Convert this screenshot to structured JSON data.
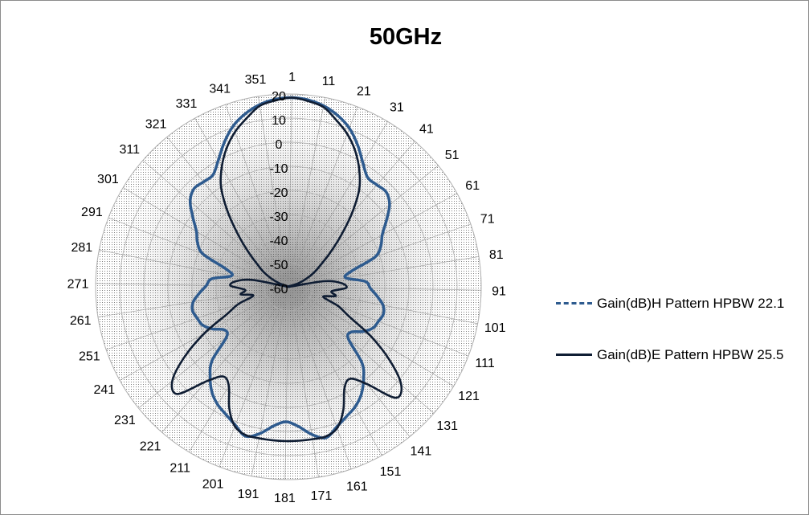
{
  "chart_data": {
    "type": "polar-line",
    "title": "50GHz",
    "angle_ticks": [
      "1",
      "11",
      "21",
      "31",
      "41",
      "51",
      "61",
      "71",
      "81",
      "91",
      "101",
      "111",
      "121",
      "131",
      "141",
      "151",
      "161",
      "171",
      "181",
      "191",
      "201",
      "211",
      "221",
      "231",
      "241",
      "251",
      "261",
      "271",
      "281",
      "291",
      "301",
      "311",
      "321",
      "331",
      "341",
      "351"
    ],
    "radial_ticks": [
      "-60",
      "-50",
      "-40",
      "-30",
      "-20",
      "-10",
      "0",
      "10",
      "20"
    ],
    "radial_range": [
      -60,
      20
    ],
    "grid": true,
    "legend_position": "right",
    "series": [
      {
        "name": "Gain(dB)H Pattern HPBW 22.1",
        "color": "#2e5b8f",
        "line_style": "dashed",
        "angles": [
          1,
          6,
          11,
          16,
          21,
          26,
          31,
          36,
          41,
          46,
          51,
          56,
          61,
          66,
          71,
          76,
          81,
          86,
          91,
          96,
          101,
          106,
          111,
          116,
          121,
          126,
          131,
          136,
          141,
          146,
          151,
          156,
          161,
          166,
          171,
          176,
          181,
          186,
          191,
          196,
          201,
          206,
          211,
          216,
          221,
          226,
          231,
          236,
          241,
          246,
          251,
          256,
          261,
          266,
          271,
          276,
          281,
          286,
          291,
          296,
          301,
          306,
          311,
          316,
          321,
          326,
          331,
          336,
          341,
          346,
          351,
          356
        ],
        "values": [
          18.5,
          18,
          16.5,
          14,
          10.5,
          5.5,
          0,
          -4,
          -4,
          -3.5,
          -6,
          -11,
          -15.5,
          -18,
          -22,
          -33,
          -36,
          -28,
          -26,
          -23,
          -20,
          -19,
          -20,
          -21,
          -24,
          -28,
          -27,
          -16,
          -10.5,
          -6,
          -3,
          -1,
          1.5,
          4.5,
          2,
          -2,
          -4,
          -2,
          2,
          4.5,
          1.5,
          -1,
          -3,
          -6,
          -10.5,
          -16,
          -27,
          -28,
          -24,
          -21,
          -20,
          -19,
          -20,
          -23,
          -26,
          -28,
          -36,
          -33,
          -22,
          -18,
          -15.5,
          -11,
          -6,
          -3.5,
          -4,
          -4,
          0,
          5.5,
          10.5,
          14,
          16.5,
          18
        ]
      },
      {
        "name": "Gain(dB)E Pattern HPBW 25.5",
        "color": "#0f1d33",
        "line_style": "solid",
        "angles": [
          1,
          6,
          11,
          16,
          21,
          26,
          31,
          36,
          41,
          46,
          51,
          56,
          61,
          66,
          71,
          76,
          81,
          86,
          91,
          96,
          101,
          106,
          111,
          116,
          121,
          126,
          131,
          136,
          141,
          146,
          151,
          156,
          161,
          166,
          171,
          176,
          181,
          186,
          191,
          196,
          201,
          206,
          211,
          216,
          221,
          226,
          231,
          236,
          241,
          246,
          251,
          256,
          261,
          266,
          271,
          276,
          281,
          286,
          291,
          296,
          301,
          306,
          311,
          316,
          321,
          326,
          331,
          336,
          341,
          346,
          351,
          356
        ],
        "values": [
          18.5,
          17.5,
          16,
          12,
          8,
          3,
          -3,
          -10,
          -20,
          -30,
          -38,
          -44,
          -48,
          -52,
          -56,
          -60,
          -45,
          -38,
          -36,
          -42,
          -40,
          -45,
          -38,
          -32,
          -20,
          -8,
          2,
          4,
          -8,
          -14,
          -12,
          -4,
          2,
          4,
          4,
          4,
          4,
          4,
          4,
          4,
          2,
          -4,
          -12,
          -14,
          -8,
          4,
          2,
          -8,
          -20,
          -32,
          -38,
          -45,
          -40,
          -42,
          -36,
          -38,
          -45,
          -60,
          -56,
          -52,
          -48,
          -44,
          -38,
          -30,
          -20,
          -10,
          -3,
          3,
          8,
          12,
          16,
          17.5
        ]
      }
    ]
  }
}
